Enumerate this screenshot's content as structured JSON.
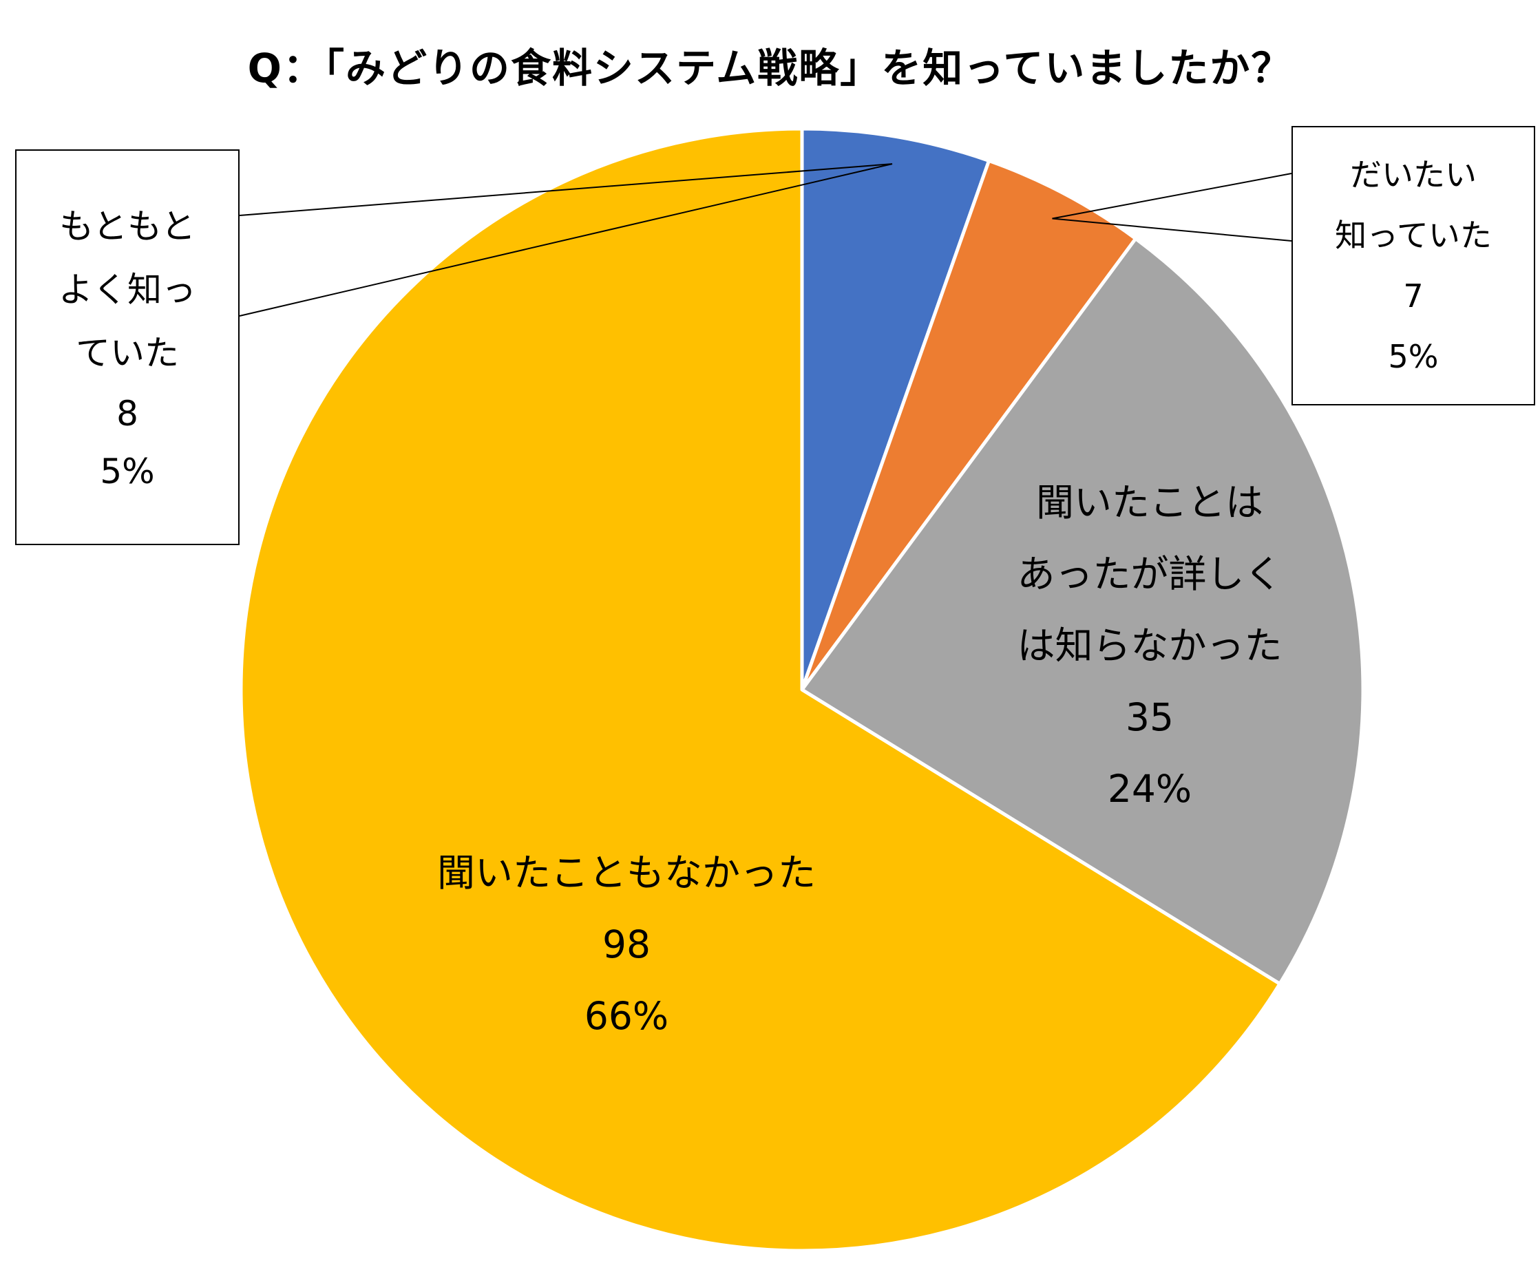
{
  "title": "Q：「みどりの食料システム戦略」を知っていましたか？",
  "chart_data": {
    "type": "pie",
    "start_angle_deg": 0,
    "direction": "clockwise",
    "slices": [
      {
        "label_lines": [
          "もともと",
          "よく知っ",
          "ていた"
        ],
        "count": "8",
        "percent": "5%",
        "value": 8,
        "color": "#4472C4"
      },
      {
        "label_lines": [
          "だいたい",
          "知っていた"
        ],
        "count": "7",
        "percent": "5%",
        "value": 7,
        "color": "#ED7D31"
      },
      {
        "label_lines": [
          "聞いたことは",
          "あったが詳しく",
          "は知らなかった"
        ],
        "count": "35",
        "percent": "24%",
        "value": 35,
        "color": "#A5A5A5"
      },
      {
        "label_lines": [
          "聞いたこともなかった"
        ],
        "count": "98",
        "percent": "66%",
        "value": 98,
        "color": "#FFC000"
      }
    ]
  }
}
